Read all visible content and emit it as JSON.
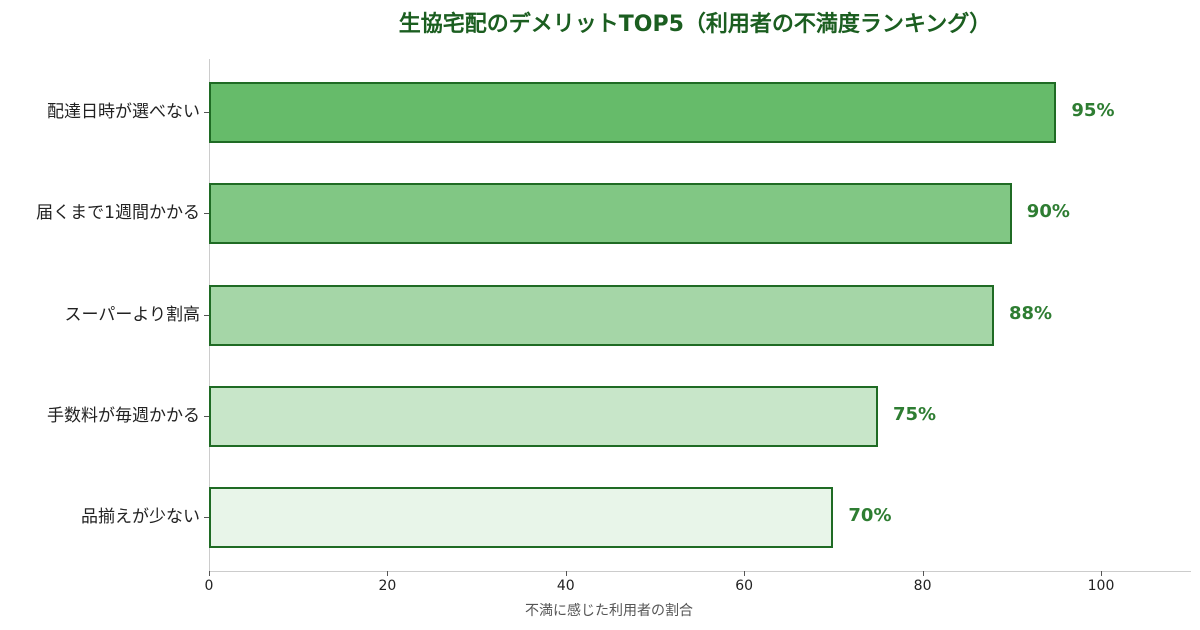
{
  "chart_data": {
    "type": "bar",
    "orientation": "horizontal",
    "title": "生協宅配のデメリットTOP5（利用者の不満度ランキング）",
    "xlabel": "不満に感じた利用者の割合",
    "ylabel": "",
    "categories": [
      "配達日時が選べない",
      "届くまで1週間かかる",
      "スーパーより割高",
      "手数料が毎週かかる",
      "品揃えが少ない"
    ],
    "values": [
      95,
      90,
      88,
      75,
      70
    ],
    "value_labels": [
      "95%",
      "90%",
      "88%",
      "75%",
      "70%"
    ],
    "bar_colors": [
      "#66bb6a",
      "#81c784",
      "#a5d6a7",
      "#c8e6c9",
      "#e8f5e9"
    ],
    "bar_edge_color": "#1f6b24",
    "label_color": "#2e7d32",
    "title_color": "#1b5e20",
    "xlim": [
      0,
      110
    ],
    "xticks": [
      0,
      20,
      40,
      60,
      80,
      100
    ],
    "xtick_labels": [
      "0",
      "20",
      "40",
      "60",
      "80",
      "100"
    ],
    "grid": false,
    "legend": null
  }
}
